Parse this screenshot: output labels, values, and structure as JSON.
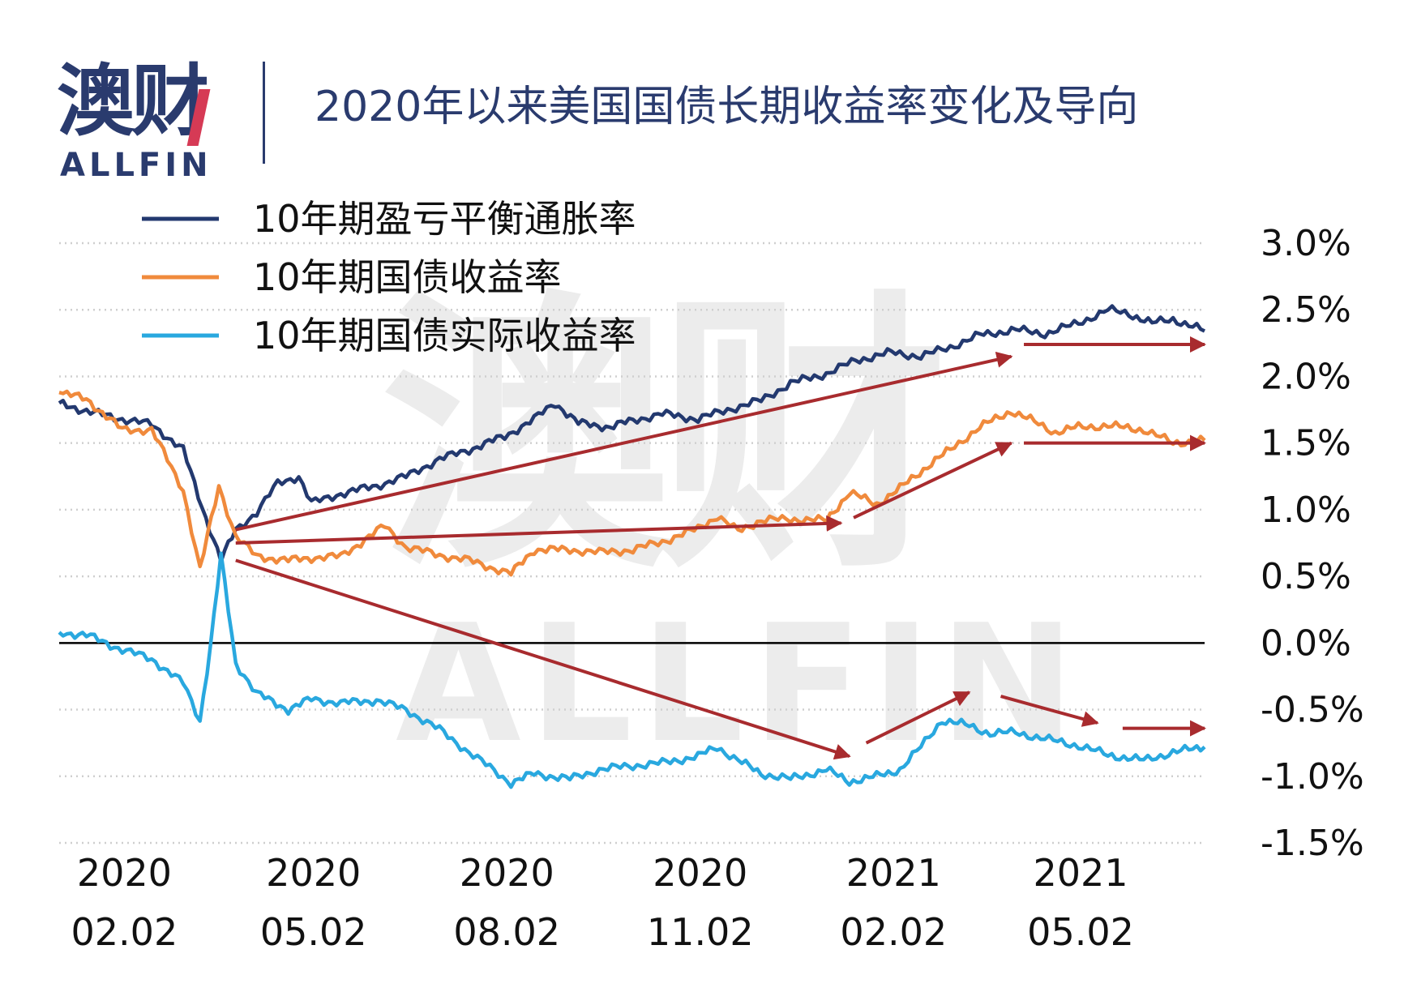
{
  "header": {
    "logo_cn": "澳财",
    "logo_en": "ALLFIN",
    "title": "2020年以来美国国债长期收益率变化及导向"
  },
  "watermark": {
    "cn": "澳财",
    "en": "ALLFIN"
  },
  "colors": {
    "breakeven": "#23396f",
    "nominal": "#f08a3c",
    "real": "#29a8df",
    "arrow": "#a82b2e",
    "grid": "#cfcfcf",
    "zero_line": "#000000",
    "title": "#2a3b6e"
  },
  "chart_data": {
    "type": "line",
    "title": "2020年以来美国国债长期收益率变化及导向",
    "x_range": [
      "2020-01-02",
      "2021-06-30"
    ],
    "ylim": [
      -1.5,
      3.0
    ],
    "y_ticks": [
      "3.0%",
      "2.5%",
      "2.0%",
      "1.5%",
      "1.0%",
      "0.5%",
      "0.0%",
      "-0.5%",
      "-1.0%",
      "-1.5%"
    ],
    "y_tick_values": [
      3.0,
      2.5,
      2.0,
      1.5,
      1.0,
      0.5,
      0.0,
      -0.5,
      -1.0,
      -1.5
    ],
    "x_ticks": [
      {
        "date": "2020-02-02",
        "year": "2020",
        "md": "02.02"
      },
      {
        "date": "2020-05-02",
        "year": "2020",
        "md": "05.02"
      },
      {
        "date": "2020-08-02",
        "year": "2020",
        "md": "08.02"
      },
      {
        "date": "2020-11-02",
        "year": "2020",
        "md": "11.02"
      },
      {
        "date": "2021-02-02",
        "year": "2021",
        "md": "02.02"
      },
      {
        "date": "2021-05-02",
        "year": "2021",
        "md": "05.02"
      }
    ],
    "grid": "horizontal dotted",
    "legend_position": "top-left",
    "series": [
      {
        "name": "10年期盈亏平衡通胀率",
        "color": "#23396f",
        "points": [
          [
            "2020-01-02",
            1.8
          ],
          [
            "2020-01-15",
            1.74
          ],
          [
            "2020-02-01",
            1.68
          ],
          [
            "2020-02-15",
            1.64
          ],
          [
            "2020-03-01",
            1.45
          ],
          [
            "2020-03-10",
            1.02
          ],
          [
            "2020-03-19",
            0.62
          ],
          [
            "2020-03-26",
            0.85
          ],
          [
            "2020-04-05",
            0.98
          ],
          [
            "2020-04-15",
            1.2
          ],
          [
            "2020-04-25",
            1.25
          ],
          [
            "2020-05-01",
            1.05
          ],
          [
            "2020-05-15",
            1.12
          ],
          [
            "2020-06-01",
            1.18
          ],
          [
            "2020-06-15",
            1.25
          ],
          [
            "2020-07-01",
            1.38
          ],
          [
            "2020-07-15",
            1.45
          ],
          [
            "2020-08-01",
            1.55
          ],
          [
            "2020-08-15",
            1.68
          ],
          [
            "2020-08-25",
            1.8
          ],
          [
            "2020-09-05",
            1.65
          ],
          [
            "2020-09-20",
            1.62
          ],
          [
            "2020-10-01",
            1.67
          ],
          [
            "2020-10-15",
            1.72
          ],
          [
            "2020-11-01",
            1.68
          ],
          [
            "2020-11-15",
            1.75
          ],
          [
            "2020-12-01",
            1.82
          ],
          [
            "2020-12-15",
            1.95
          ],
          [
            "2021-01-01",
            2.02
          ],
          [
            "2021-01-15",
            2.12
          ],
          [
            "2021-02-01",
            2.18
          ],
          [
            "2021-02-15",
            2.15
          ],
          [
            "2021-03-01",
            2.22
          ],
          [
            "2021-03-15",
            2.31
          ],
          [
            "2021-04-01",
            2.35
          ],
          [
            "2021-04-15",
            2.32
          ],
          [
            "2021-05-01",
            2.4
          ],
          [
            "2021-05-15",
            2.5
          ],
          [
            "2021-05-25",
            2.47
          ],
          [
            "2021-06-05",
            2.4
          ],
          [
            "2021-06-15",
            2.43
          ],
          [
            "2021-06-30",
            2.34
          ]
        ]
      },
      {
        "name": "10年期国债收益率",
        "color": "#f08a3c",
        "points": [
          [
            "2020-01-02",
            1.88
          ],
          [
            "2020-01-15",
            1.83
          ],
          [
            "2020-02-01",
            1.6
          ],
          [
            "2020-02-15",
            1.6
          ],
          [
            "2020-03-01",
            1.15
          ],
          [
            "2020-03-09",
            0.55
          ],
          [
            "2020-03-18",
            1.18
          ],
          [
            "2020-03-26",
            0.8
          ],
          [
            "2020-04-05",
            0.65
          ],
          [
            "2020-04-20",
            0.62
          ],
          [
            "2020-05-01",
            0.64
          ],
          [
            "2020-05-15",
            0.65
          ],
          [
            "2020-06-05",
            0.88
          ],
          [
            "2020-06-15",
            0.72
          ],
          [
            "2020-07-01",
            0.66
          ],
          [
            "2020-07-15",
            0.62
          ],
          [
            "2020-08-04",
            0.52
          ],
          [
            "2020-08-15",
            0.7
          ],
          [
            "2020-09-01",
            0.7
          ],
          [
            "2020-09-15",
            0.68
          ],
          [
            "2020-10-01",
            0.7
          ],
          [
            "2020-10-15",
            0.76
          ],
          [
            "2020-11-01",
            0.86
          ],
          [
            "2020-11-10",
            0.95
          ],
          [
            "2020-11-20",
            0.84
          ],
          [
            "2020-12-01",
            0.92
          ],
          [
            "2020-12-15",
            0.93
          ],
          [
            "2021-01-01",
            0.92
          ],
          [
            "2021-01-12",
            1.13
          ],
          [
            "2021-01-25",
            1.04
          ],
          [
            "2021-02-05",
            1.16
          ],
          [
            "2021-02-20",
            1.35
          ],
          [
            "2021-03-01",
            1.45
          ],
          [
            "2021-03-15",
            1.62
          ],
          [
            "2021-03-30",
            1.74
          ],
          [
            "2021-04-10",
            1.66
          ],
          [
            "2021-04-20",
            1.58
          ],
          [
            "2021-05-01",
            1.62
          ],
          [
            "2021-05-15",
            1.63
          ],
          [
            "2021-06-01",
            1.6
          ],
          [
            "2021-06-15",
            1.5
          ],
          [
            "2021-06-30",
            1.52
          ]
        ]
      },
      {
        "name": "10年期国债实际收益率",
        "color": "#29a8df",
        "points": [
          [
            "2020-01-02",
            0.08
          ],
          [
            "2020-01-15",
            0.06
          ],
          [
            "2020-02-01",
            -0.05
          ],
          [
            "2020-02-15",
            -0.12
          ],
          [
            "2020-03-01",
            -0.3
          ],
          [
            "2020-03-09",
            -0.58
          ],
          [
            "2020-03-14",
            -0.02
          ],
          [
            "2020-03-19",
            0.65
          ],
          [
            "2020-03-26",
            -0.15
          ],
          [
            "2020-04-05",
            -0.38
          ],
          [
            "2020-04-20",
            -0.5
          ],
          [
            "2020-05-01",
            -0.42
          ],
          [
            "2020-05-15",
            -0.45
          ],
          [
            "2020-06-01",
            -0.43
          ],
          [
            "2020-06-15",
            -0.5
          ],
          [
            "2020-07-01",
            -0.65
          ],
          [
            "2020-07-15",
            -0.82
          ],
          [
            "2020-08-04",
            -1.05
          ],
          [
            "2020-08-15",
            -0.98
          ],
          [
            "2020-09-01",
            -1.02
          ],
          [
            "2020-09-15",
            -0.95
          ],
          [
            "2020-10-01",
            -0.92
          ],
          [
            "2020-10-15",
            -0.9
          ],
          [
            "2020-11-01",
            -0.85
          ],
          [
            "2020-11-10",
            -0.78
          ],
          [
            "2020-11-20",
            -0.88
          ],
          [
            "2020-12-01",
            -0.98
          ],
          [
            "2020-12-15",
            -1.02
          ],
          [
            "2021-01-01",
            -0.95
          ],
          [
            "2021-01-12",
            -1.04
          ],
          [
            "2021-01-25",
            -1.0
          ],
          [
            "2021-02-05",
            -0.95
          ],
          [
            "2021-02-15",
            -0.78
          ],
          [
            "2021-02-25",
            -0.58
          ],
          [
            "2021-03-10",
            -0.62
          ],
          [
            "2021-03-20",
            -0.68
          ],
          [
            "2021-04-01",
            -0.67
          ],
          [
            "2021-04-15",
            -0.72
          ],
          [
            "2021-05-01",
            -0.77
          ],
          [
            "2021-05-15",
            -0.84
          ],
          [
            "2021-06-01",
            -0.88
          ],
          [
            "2021-06-15",
            -0.82
          ],
          [
            "2021-06-30",
            -0.78
          ]
        ]
      }
    ],
    "trend_arrows": [
      {
        "from": [
          "2020-03-26",
          0.85
        ],
        "to": [
          "2021-03-30",
          2.15
        ]
      },
      {
        "from": [
          "2021-04-05",
          2.24
        ],
        "to": [
          "2021-06-30",
          2.24
        ]
      },
      {
        "from": [
          "2020-03-26",
          0.75
        ],
        "to": [
          "2021-01-08",
          0.9
        ]
      },
      {
        "from": [
          "2021-01-14",
          0.94
        ],
        "to": [
          "2021-03-30",
          1.5
        ]
      },
      {
        "from": [
          "2021-04-05",
          1.5
        ],
        "to": [
          "2021-06-30",
          1.5
        ]
      },
      {
        "from": [
          "2020-03-26",
          0.62
        ],
        "to": [
          "2021-01-12",
          -0.85
        ]
      },
      {
        "from": [
          "2021-01-20",
          -0.75
        ],
        "to": [
          "2021-03-10",
          -0.37
        ]
      },
      {
        "from": [
          "2021-03-25",
          -0.4
        ],
        "to": [
          "2021-05-10",
          -0.6
        ]
      },
      {
        "from": [
          "2021-05-22",
          -0.64
        ],
        "to": [
          "2021-06-30",
          -0.64
        ]
      }
    ]
  }
}
